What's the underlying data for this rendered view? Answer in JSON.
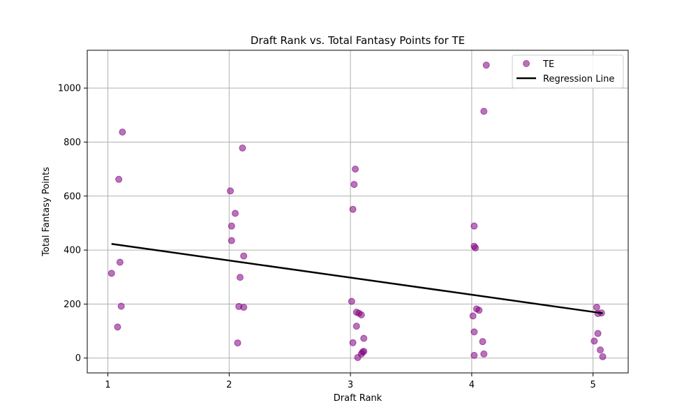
{
  "chart_data": {
    "type": "scatter",
    "title": "Draft Rank vs. Total Fantasy Points for TE",
    "xlabel": "Draft Rank",
    "ylabel": "Total Fantasy Points",
    "xlim": [
      0.83,
      5.29
    ],
    "ylim": [
      -55,
      1140
    ],
    "xticks": [
      1,
      2,
      3,
      4,
      5
    ],
    "yticks": [
      0,
      200,
      400,
      600,
      800,
      1000
    ],
    "grid": true,
    "legend_position": "top-right",
    "series": [
      {
        "name": "TE",
        "kind": "scatter",
        "color": "#800080",
        "points": [
          [
            1.03,
            314
          ],
          [
            1.08,
            115
          ],
          [
            1.09,
            662
          ],
          [
            1.1,
            355
          ],
          [
            1.11,
            192
          ],
          [
            1.12,
            837
          ],
          [
            2.01,
            619
          ],
          [
            2.02,
            489
          ],
          [
            2.02,
            435
          ],
          [
            2.05,
            536
          ],
          [
            2.07,
            56
          ],
          [
            2.08,
            191
          ],
          [
            2.09,
            299
          ],
          [
            2.11,
            778
          ],
          [
            2.12,
            188
          ],
          [
            2.12,
            378
          ],
          [
            3.01,
            210
          ],
          [
            3.02,
            57
          ],
          [
            3.02,
            551
          ],
          [
            3.03,
            643
          ],
          [
            3.04,
            700
          ],
          [
            3.05,
            118
          ],
          [
            3.05,
            170
          ],
          [
            3.06,
            2
          ],
          [
            3.07,
            166
          ],
          [
            3.09,
            15
          ],
          [
            3.09,
            160
          ],
          [
            3.1,
            22
          ],
          [
            3.11,
            25
          ],
          [
            3.11,
            73
          ],
          [
            4.01,
            156
          ],
          [
            4.02,
            97
          ],
          [
            4.02,
            489
          ],
          [
            4.02,
            10
          ],
          [
            4.02,
            414
          ],
          [
            4.03,
            408
          ],
          [
            4.04,
            182
          ],
          [
            4.06,
            177
          ],
          [
            4.09,
            61
          ],
          [
            4.1,
            15
          ],
          [
            4.1,
            914
          ],
          [
            4.12,
            1085
          ],
          [
            5.01,
            63
          ],
          [
            5.03,
            188
          ],
          [
            5.04,
            165
          ],
          [
            5.04,
            91
          ],
          [
            5.06,
            30
          ],
          [
            5.07,
            167
          ],
          [
            5.08,
            5
          ]
        ]
      },
      {
        "name": "Regression Line",
        "kind": "line",
        "color": "#000000",
        "points": [
          [
            1.03,
            423
          ],
          [
            5.08,
            166
          ]
        ]
      }
    ]
  }
}
